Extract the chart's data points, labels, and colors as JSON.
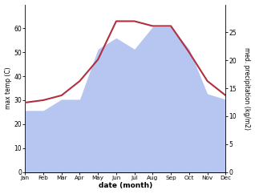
{
  "months": [
    "Jan",
    "Feb",
    "Mar",
    "Apr",
    "May",
    "Jun",
    "Jul",
    "Aug",
    "Sep",
    "Oct",
    "Nov",
    "Dec"
  ],
  "temp": [
    29,
    30,
    32,
    38,
    47,
    63,
    63,
    61,
    61,
    50,
    38,
    32
  ],
  "precip": [
    11,
    11,
    13,
    13,
    22,
    24,
    22,
    26,
    26,
    22,
    14,
    13
  ],
  "temp_ylim": [
    0,
    70
  ],
  "precip_ylim": [
    0,
    30
  ],
  "temp_yticks": [
    0,
    10,
    20,
    30,
    40,
    50,
    60
  ],
  "precip_yticks": [
    0,
    5,
    10,
    15,
    20,
    25
  ],
  "ylabel_left": "max temp (C)",
  "ylabel_right": "med. precipitation (kg/m2)",
  "xlabel": "date (month)",
  "fill_color": "#aec0f0",
  "line_color": "#b03040",
  "line_width": 1.5,
  "bg_color": "#ffffff"
}
